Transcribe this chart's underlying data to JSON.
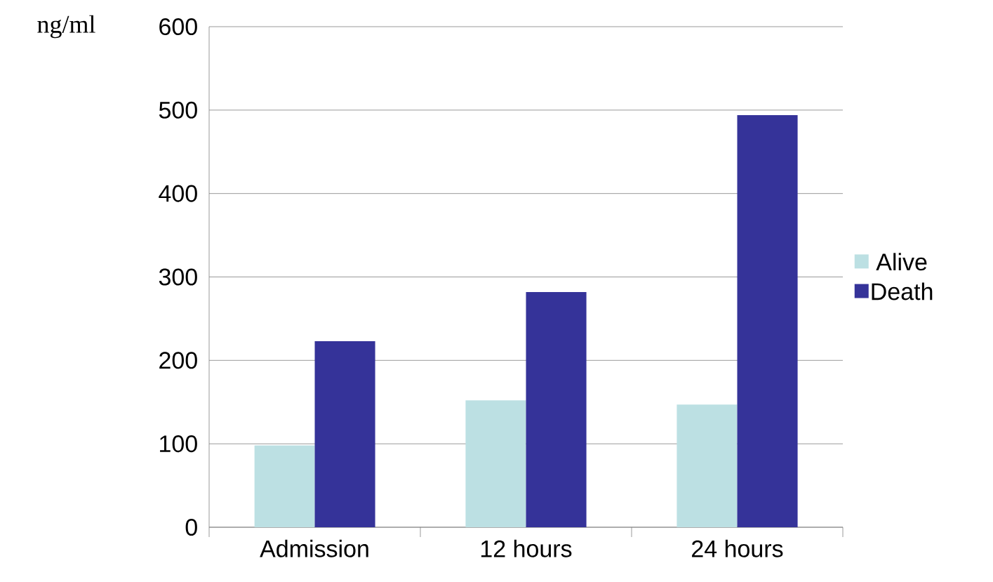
{
  "chart_data": {
    "type": "bar",
    "ylabel": "ng/ml",
    "categories": [
      "Admission",
      "12 hours",
      "24 hours"
    ],
    "series": [
      {
        "name": "Alive",
        "color": "#bce0e3",
        "values": [
          98,
          152,
          147
        ]
      },
      {
        "name": "Death",
        "color": "#353399",
        "values": [
          223,
          282,
          494
        ]
      }
    ],
    "ylim": [
      0,
      600
    ],
    "yticks": [
      0,
      100,
      200,
      300,
      400,
      500,
      600
    ],
    "grid": "y",
    "legend": "right"
  }
}
